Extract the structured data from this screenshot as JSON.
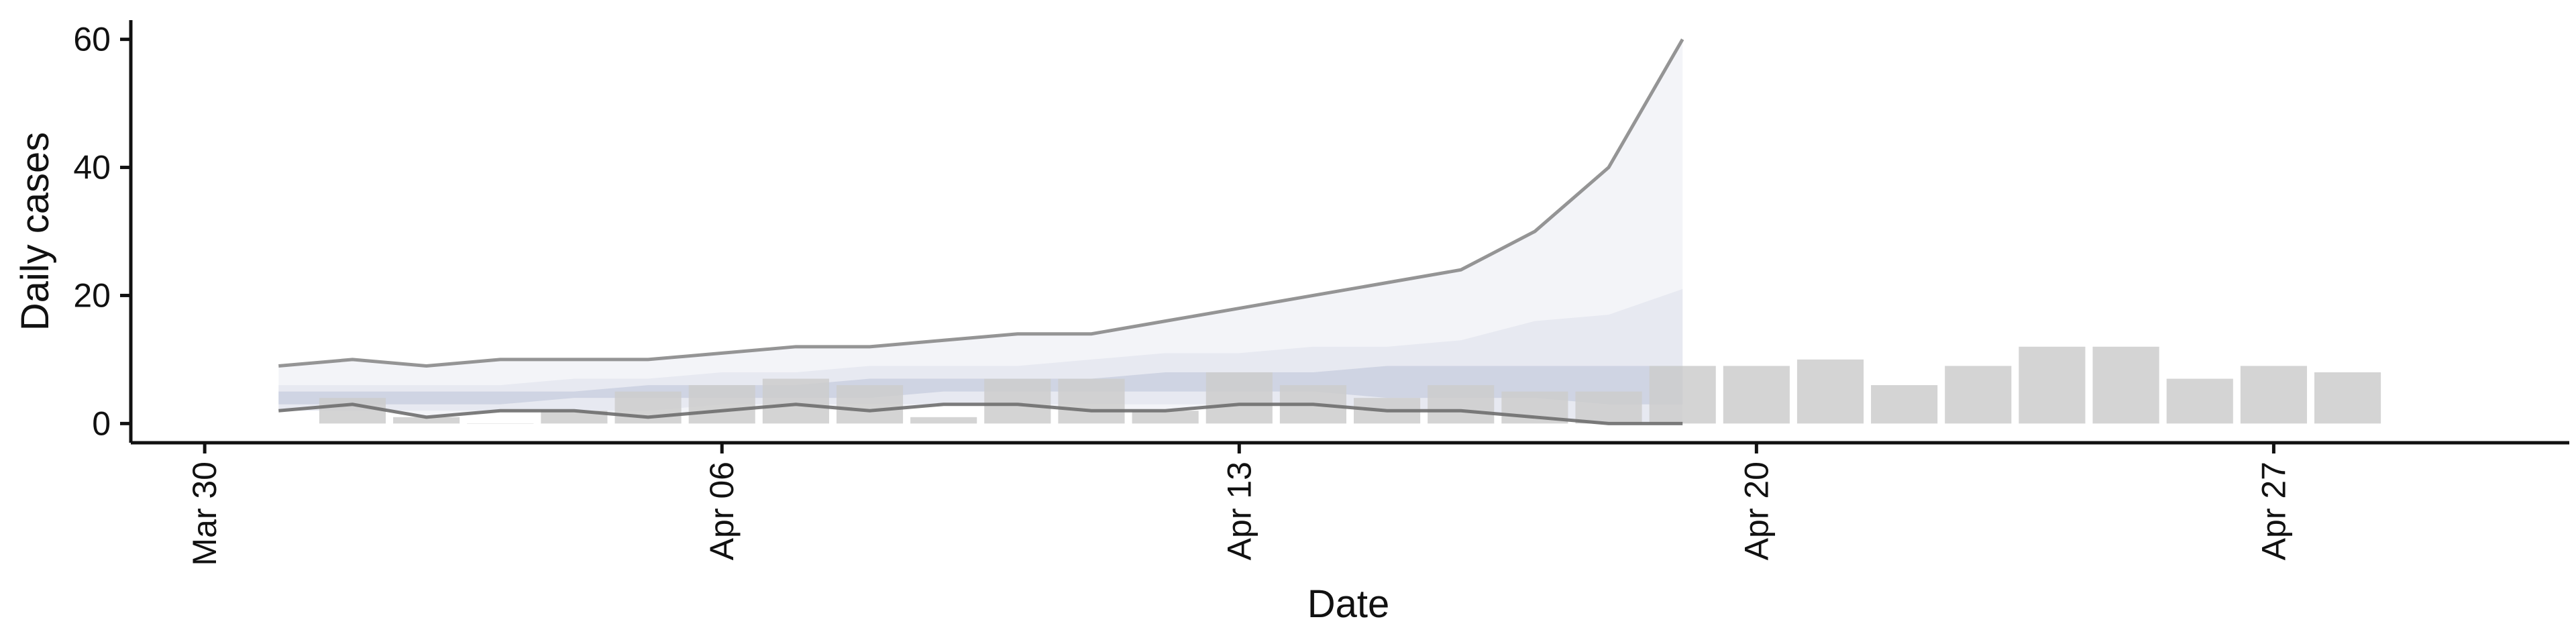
{
  "chart_data": {
    "type": "bar",
    "title": "",
    "xlabel": "Date",
    "ylabel": "Daily cases",
    "ylim": [
      -3,
      63
    ],
    "xlim": [
      "2020-03-29",
      "2020-05-01"
    ],
    "x_ticks": [
      {
        "date": "2020-03-30",
        "label": "Mar 30"
      },
      {
        "date": "2020-04-06",
        "label": "Apr 06"
      },
      {
        "date": "2020-04-13",
        "label": "Apr 13"
      },
      {
        "date": "2020-04-20",
        "label": "Apr 20"
      },
      {
        "date": "2020-04-27",
        "label": "Apr 27"
      }
    ],
    "y_ticks": [
      0,
      20,
      40,
      60
    ],
    "grid": false,
    "legend": "none",
    "colors": {
      "bars": "#cccccc",
      "band_outer": "#f3f4f8",
      "band_mid": "#e7e9f1",
      "band_inner": "#cfd4e3",
      "upper_line": "#8a8a8a",
      "lower_line": "#6e6e6e",
      "axis": "#111111"
    },
    "bars": {
      "name": "Reported cases",
      "dates": [
        "2020-04-01",
        "2020-04-02",
        "2020-04-03",
        "2020-04-04",
        "2020-04-05",
        "2020-04-06",
        "2020-04-07",
        "2020-04-08",
        "2020-04-09",
        "2020-04-10",
        "2020-04-11",
        "2020-04-12",
        "2020-04-13",
        "2020-04-14",
        "2020-04-15",
        "2020-04-16",
        "2020-04-17",
        "2020-04-18",
        "2020-04-19",
        "2020-04-20",
        "2020-04-21",
        "2020-04-22",
        "2020-04-23",
        "2020-04-24",
        "2020-04-25",
        "2020-04-26",
        "2020-04-27",
        "2020-04-28"
      ],
      "values": [
        4,
        1,
        0,
        2,
        5,
        6,
        7,
        6,
        1,
        7,
        7,
        2,
        8,
        6,
        4,
        6,
        5,
        5,
        9,
        9,
        10,
        6,
        9,
        12,
        12,
        7,
        9,
        8
      ]
    },
    "forecast": {
      "dates": [
        "2020-03-31",
        "2020-04-01",
        "2020-04-02",
        "2020-04-03",
        "2020-04-04",
        "2020-04-05",
        "2020-04-06",
        "2020-04-07",
        "2020-04-08",
        "2020-04-09",
        "2020-04-10",
        "2020-04-11",
        "2020-04-12",
        "2020-04-13",
        "2020-04-14",
        "2020-04-15",
        "2020-04-16",
        "2020-04-17",
        "2020-04-18",
        "2020-04-19"
      ],
      "upper_90": [
        9,
        10,
        9,
        10,
        10,
        10,
        11,
        12,
        12,
        13,
        14,
        14,
        16,
        18,
        20,
        22,
        24,
        30,
        40,
        60
      ],
      "upper_50": [
        6,
        6,
        6,
        6,
        7,
        7,
        8,
        8,
        9,
        9,
        9,
        10,
        11,
        11,
        12,
        12,
        13,
        16,
        17,
        21
      ],
      "upper_20": [
        5,
        5,
        5,
        5,
        5,
        6,
        6,
        6,
        7,
        7,
        7,
        7,
        8,
        8,
        8,
        9,
        9,
        9,
        9,
        9
      ],
      "lower_20": [
        3,
        3,
        3,
        3,
        4,
        4,
        4,
        4,
        4,
        5,
        5,
        5,
        5,
        5,
        5,
        4,
        4,
        4,
        3,
        3
      ],
      "lower_50": [
        2,
        2,
        2,
        2,
        2,
        2,
        3,
        3,
        3,
        3,
        3,
        3,
        3,
        3,
        3,
        2,
        2,
        1,
        0,
        0
      ],
      "lower_90": [
        2,
        3,
        1,
        2,
        2,
        1,
        2,
        3,
        2,
        3,
        3,
        2,
        2,
        3,
        3,
        2,
        2,
        1,
        0,
        0
      ]
    }
  }
}
